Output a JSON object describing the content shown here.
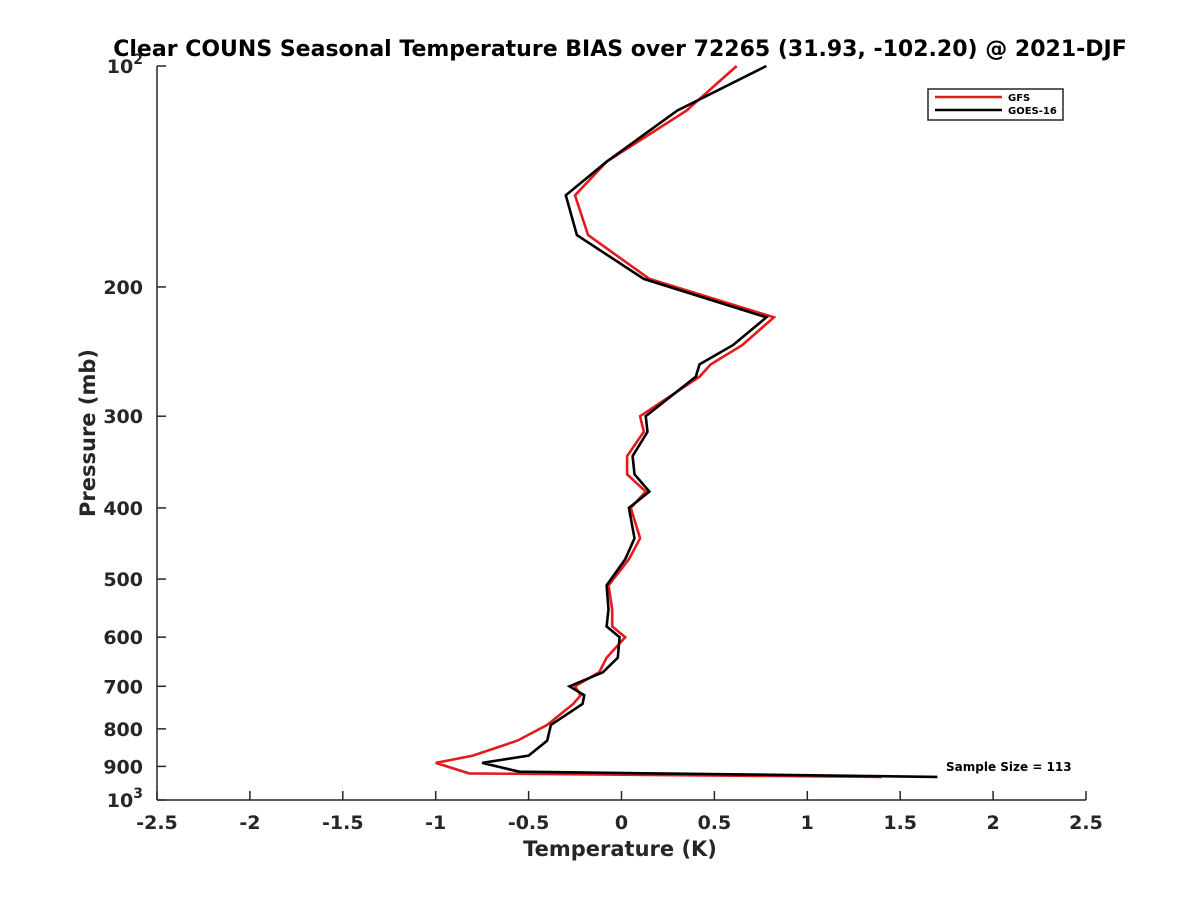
{
  "chart_data": {
    "type": "line",
    "title": "Clear COUNS Seasonal Temperature BIAS over 72265 (31.93, -102.20) @ 2021-DJF",
    "xlabel": "Temperature (K)",
    "ylabel": "Pressure (mb)",
    "xlim": [
      -2.5,
      2.5
    ],
    "ylim": [
      100,
      1000
    ],
    "y_scale": "log",
    "y_direction": "reversed",
    "x_ticks": [
      "-2.5",
      "-2",
      "-1.5",
      "-1",
      "-0.5",
      "0",
      "0.5",
      "1",
      "1.5",
      "2",
      "2.5"
    ],
    "y_ticks": [
      {
        "value": 100,
        "base": "10",
        "exp": "2"
      },
      {
        "value": 200,
        "label": "200"
      },
      {
        "value": 300,
        "label": "300"
      },
      {
        "value": 400,
        "label": "400"
      },
      {
        "value": 500,
        "label": "500"
      },
      {
        "value": 600,
        "label": "600"
      },
      {
        "value": 700,
        "label": "700"
      },
      {
        "value": 800,
        "label": "800"
      },
      {
        "value": 900,
        "label": "900"
      },
      {
        "value": 1000,
        "base": "10",
        "exp": "3"
      }
    ],
    "grid": false,
    "legend_position": "top-right",
    "annotation": "Sample Size = 113",
    "series": [
      {
        "name": "GFS",
        "color": "#e41a1c",
        "points": [
          [
            0.62,
            100
          ],
          [
            0.35,
            115
          ],
          [
            -0.08,
            135
          ],
          [
            -0.25,
            150
          ],
          [
            -0.18,
            170
          ],
          [
            0.15,
            195
          ],
          [
            0.82,
            220
          ],
          [
            0.65,
            240
          ],
          [
            0.48,
            255
          ],
          [
            0.42,
            265
          ],
          [
            0.1,
            300
          ],
          [
            0.12,
            315
          ],
          [
            0.03,
            340
          ],
          [
            0.03,
            360
          ],
          [
            0.13,
            380
          ],
          [
            0.05,
            400
          ],
          [
            0.1,
            440
          ],
          [
            0.04,
            470
          ],
          [
            -0.07,
            510
          ],
          [
            -0.05,
            550
          ],
          [
            -0.05,
            580
          ],
          [
            0.02,
            600
          ],
          [
            -0.08,
            640
          ],
          [
            -0.12,
            670
          ],
          [
            -0.25,
            700
          ],
          [
            -0.22,
            720
          ],
          [
            -0.26,
            740
          ],
          [
            -0.4,
            790
          ],
          [
            -0.56,
            830
          ],
          [
            -0.8,
            870
          ],
          [
            -1.0,
            890
          ],
          [
            -0.82,
            920
          ],
          [
            1.4,
            930
          ]
        ]
      },
      {
        "name": "GOES-16",
        "color": "#000000",
        "points": [
          [
            0.78,
            100
          ],
          [
            0.3,
            115
          ],
          [
            -0.08,
            135
          ],
          [
            -0.3,
            150
          ],
          [
            -0.24,
            170
          ],
          [
            0.12,
            195
          ],
          [
            0.78,
            220
          ],
          [
            0.6,
            240
          ],
          [
            0.42,
            255
          ],
          [
            0.4,
            265
          ],
          [
            0.13,
            300
          ],
          [
            0.14,
            315
          ],
          [
            0.06,
            340
          ],
          [
            0.07,
            360
          ],
          [
            0.15,
            380
          ],
          [
            0.04,
            400
          ],
          [
            0.07,
            440
          ],
          [
            0.02,
            470
          ],
          [
            -0.08,
            510
          ],
          [
            -0.07,
            550
          ],
          [
            -0.08,
            580
          ],
          [
            -0.01,
            600
          ],
          [
            -0.02,
            640
          ],
          [
            -0.1,
            670
          ],
          [
            -0.28,
            700
          ],
          [
            -0.2,
            720
          ],
          [
            -0.21,
            740
          ],
          [
            -0.38,
            790
          ],
          [
            -0.4,
            830
          ],
          [
            -0.5,
            870
          ],
          [
            -0.75,
            890
          ],
          [
            -0.55,
            915
          ],
          [
            1.7,
            930
          ]
        ]
      }
    ]
  }
}
